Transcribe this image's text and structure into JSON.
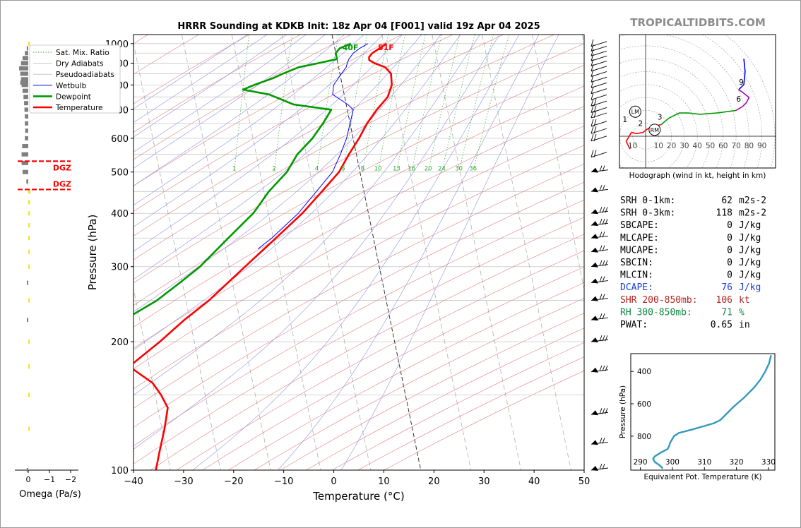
{
  "title": "HRRR Sounding at KDKB Init: 18z Apr 04 [F001] valid 19z Apr 04 2025",
  "watermark": "TROPICALTIDBITS.COM",
  "colors": {
    "temperature": "#ff0000",
    "dewpoint": "#009900",
    "wetbulb": "#0000ff",
    "dry_adiabat": "#e08080",
    "pseudoadiabat": "#9090e0",
    "mixing_ratio": "#33aa33",
    "isotherm": "#b0b0b0",
    "theta_e": "#3399bb",
    "dcape": "#1f3fd1",
    "shear": "#b22222",
    "rh": "#118844",
    "dgz": "#ff0000",
    "omega_up": "#f6e020",
    "omega_down": "#808080"
  },
  "legend": {
    "items": [
      {
        "label": "Sat. Mix. Ratio",
        "style": "mix"
      },
      {
        "label": "Dry Adiabats",
        "style": "dry"
      },
      {
        "label": "Pseudoadiabats",
        "style": "pseudo"
      },
      {
        "label": "Wetbulb",
        "style": "wet"
      },
      {
        "label": "Dewpoint",
        "style": "dew"
      },
      {
        "label": "Temperature",
        "style": "temp"
      }
    ]
  },
  "chart_data": [
    {
      "type": "line",
      "name": "skew-t",
      "xlabel": "Temperature (°C)",
      "ylabel": "Pressure (hPa)",
      "xlim": [
        -40,
        50
      ],
      "ylim": [
        1050,
        100
      ],
      "y_scale": "log",
      "xticks": [
        -40,
        -30,
        -20,
        -10,
        0,
        10,
        20,
        30,
        40,
        50
      ],
      "xtick_labels": [
        "−40",
        "−30",
        "−20",
        "−10",
        "0",
        "10",
        "20",
        "30",
        "40",
        "50"
      ],
      "yticks": [
        1000,
        900,
        800,
        700,
        600,
        500,
        400,
        300,
        200,
        100
      ],
      "mixing_ratio_labels": [
        "1",
        "2",
        "4",
        "6",
        "8",
        "10",
        "13",
        "16",
        "20",
        "24",
        "30",
        "36"
      ],
      "surface_labels": {
        "temperature": "51F",
        "dewpoint": "40F"
      },
      "series": [
        {
          "name": "Temperature",
          "points": [
            [
              1000,
              10.5
            ],
            [
              975,
              9.0
            ],
            [
              950,
              7.3
            ],
            [
              930,
              6.5
            ],
            [
              915,
              6.4
            ],
            [
              900,
              7.3
            ],
            [
              880,
              9.3
            ],
            [
              850,
              10.2
            ],
            [
              800,
              9.9
            ],
            [
              750,
              8.6
            ],
            [
              700,
              5.9
            ],
            [
              650,
              3.4
            ],
            [
              600,
              1.2
            ],
            [
              550,
              -1.5
            ],
            [
              500,
              -4.2
            ],
            [
              450,
              -8.4
            ],
            [
              400,
              -13.2
            ],
            [
              350,
              -19.5
            ],
            [
              300,
              -26.8
            ],
            [
              250,
              -35.4
            ],
            [
              225,
              -41.1
            ],
            [
              200,
              -46.9
            ],
            [
              175,
              -54.0
            ],
            [
              160,
              -50.0
            ],
            [
              150,
              -48.8
            ],
            [
              140,
              -48.0
            ],
            [
              125,
              -49.5
            ],
            [
              110,
              -51.5
            ],
            [
              100,
              -52.9
            ]
          ]
        },
        {
          "name": "Dewpoint",
          "points": [
            [
              1000,
              3.4
            ],
            [
              975,
              1.0
            ],
            [
              950,
              0.0
            ],
            [
              920,
              0.0
            ],
            [
              900,
              -3.8
            ],
            [
              880,
              -8.0
            ],
            [
              850,
              -11.4
            ],
            [
              830,
              -13.5
            ],
            [
              800,
              -17.6
            ],
            [
              780,
              -20.0
            ],
            [
              760,
              -15.0
            ],
            [
              720,
              -10.5
            ],
            [
              700,
              -3.2
            ],
            [
              650,
              -5.4
            ],
            [
              600,
              -8.1
            ],
            [
              550,
              -11.8
            ],
            [
              500,
              -14.6
            ],
            [
              450,
              -19.0
            ],
            [
              400,
              -23.0
            ],
            [
              350,
              -29.0
            ],
            [
              300,
              -35.8
            ],
            [
              275,
              -40.5
            ],
            [
              250,
              -45.8
            ],
            [
              200,
              -61.4
            ],
            [
              175,
              -68.5
            ],
            [
              150,
              -75.0
            ],
            [
              125,
              -80.7
            ],
            [
              110,
              -86.5
            ],
            [
              100,
              -88.0
            ]
          ]
        },
        {
          "name": "Wetbulb",
          "points": [
            [
              1000,
              6.8
            ],
            [
              975,
              5.0
            ],
            [
              950,
              3.5
            ],
            [
              920,
              2.4
            ],
            [
              900,
              1.9
            ],
            [
              880,
              1.5
            ],
            [
              850,
              0.3
            ],
            [
              800,
              -1.7
            ],
            [
              760,
              -2.3
            ],
            [
              720,
              0.3
            ],
            [
              700,
              1.2
            ],
            [
              650,
              0.0
            ],
            [
              600,
              -1.3
            ],
            [
              550,
              -3.2
            ],
            [
              500,
              -5.5
            ],
            [
              450,
              -9.5
            ],
            [
              400,
              -14.0
            ],
            [
              350,
              -20.3
            ],
            [
              330,
              -23.5
            ]
          ]
        }
      ],
      "wind_barbs": "right-side profile, 100–1000 hPa"
    },
    {
      "type": "bar",
      "name": "omega",
      "xlabel": "Omega (Pa/s)",
      "xticks": [
        0,
        -1,
        -2
      ],
      "xtick_labels": [
        "0",
        "−1",
        "−2"
      ],
      "dgz_label": "DGZ",
      "dgz_levels_hpa": [
        455,
        530
      ],
      "levels_hpa": [
        100,
        125,
        150,
        175,
        200,
        225,
        250,
        275,
        300,
        325,
        350,
        375,
        400,
        425,
        450,
        475,
        500,
        525,
        550,
        575,
        600,
        625,
        650,
        675,
        700,
        725,
        750,
        775,
        800,
        810,
        825,
        850,
        875,
        900,
        925,
        950,
        975,
        1000
      ],
      "values": [
        -0.08,
        0.0,
        0.04,
        0.0,
        0.03,
        -0.06,
        0.05,
        -0.05,
        0.02,
        0.03,
        0.08,
        0.08,
        0.09,
        0.09,
        0.11,
        -0.1,
        -0.3,
        -0.35,
        -0.35,
        -0.32,
        -0.18,
        -0.16,
        -0.18,
        -0.18,
        -0.2,
        -0.22,
        -0.25,
        -0.3,
        -0.35,
        -0.42,
        -0.38,
        -0.42,
        -0.48,
        -0.38,
        -0.3,
        -0.18,
        -0.08,
        0.05
      ]
    },
    {
      "type": "line",
      "name": "hodograph",
      "xlabel": "Hodograph (wind in kt, height in km)",
      "ring_labels": [
        "10",
        "10",
        "20",
        "30",
        "40",
        "50",
        "60",
        "70",
        "80",
        "90"
      ],
      "height_labels": [
        "1",
        "2",
        "3",
        "6",
        "9"
      ],
      "markers": [
        "LM",
        "RM"
      ],
      "segments": [
        {
          "name": "0-3 km",
          "color": "#ff0000",
          "points": [
            [
              -12,
              -10
            ],
            [
              -15,
              -4
            ],
            [
              -11,
              3
            ],
            [
              -7,
              2
            ],
            [
              -2,
              3
            ],
            [
              2,
              6
            ],
            [
              8,
              8
            ],
            [
              12,
              9
            ]
          ]
        },
        {
          "name": "3-6 km",
          "color": "#009900",
          "points": [
            [
              12,
              9
            ],
            [
              18,
              14
            ],
            [
              26,
              18
            ],
            [
              33,
              18
            ],
            [
              42,
              17
            ],
            [
              55,
              18
            ],
            [
              70,
              20
            ]
          ]
        },
        {
          "name": "6-9 km",
          "color": "#aa00aa",
          "points": [
            [
              70,
              20
            ],
            [
              75,
              23
            ],
            [
              78,
              26
            ],
            [
              80,
              30
            ],
            [
              75,
              34
            ],
            [
              72,
              36
            ]
          ]
        },
        {
          "name": "9+ km",
          "color": "#0000ff",
          "points": [
            [
              72,
              36
            ],
            [
              76,
              40
            ],
            [
              77,
              50
            ],
            [
              76,
              60
            ]
          ]
        }
      ],
      "storm_motion": {
        "LM": [
          -8,
          19
        ],
        "RM": [
          7,
          5
        ]
      }
    },
    {
      "type": "line",
      "name": "theta-e profile",
      "xlabel": "Equivalent Pot. Temperature (K)",
      "ylabel": "Pressure (hPa)",
      "xlim": [
        287,
        332
      ],
      "ylim": [
        1010,
        290
      ],
      "xticks": [
        290,
        300,
        310,
        320,
        330
      ],
      "yticks": [
        400,
        600,
        800
      ],
      "points": [
        [
          1000,
          297.0
        ],
        [
          980,
          296.0
        ],
        [
          960,
          294.5
        ],
        [
          940,
          294.0
        ],
        [
          925,
          294.5
        ],
        [
          900,
          296.5
        ],
        [
          880,
          298.5
        ],
        [
          860,
          299.0
        ],
        [
          840,
          299.3
        ],
        [
          800,
          300.5
        ],
        [
          780,
          302.0
        ],
        [
          760,
          306.0
        ],
        [
          740,
          309.5
        ],
        [
          720,
          313.0
        ],
        [
          700,
          315.0
        ],
        [
          680,
          316.0
        ],
        [
          620,
          319.0
        ],
        [
          560,
          322.5
        ],
        [
          500,
          325.5
        ],
        [
          450,
          327.5
        ],
        [
          400,
          329.0
        ],
        [
          350,
          330.2
        ],
        [
          300,
          330.8
        ]
      ]
    }
  ],
  "indices": [
    {
      "label": "SRH 0-1km:",
      "value": "62",
      "unit": "m2s-2",
      "color": "#000000"
    },
    {
      "label": "SRH 0-3km:",
      "value": "118",
      "unit": "m2s-2",
      "color": "#000000"
    },
    {
      "label": "SBCAPE:",
      "value": "0",
      "unit": "J/kg",
      "color": "#000000"
    },
    {
      "label": "MLCAPE:",
      "value": "0",
      "unit": "J/kg",
      "color": "#000000"
    },
    {
      "label": "MUCAPE:",
      "value": "0",
      "unit": "J/kg",
      "color": "#000000"
    },
    {
      "label": "SBCIN:",
      "value": "0",
      "unit": "J/kg",
      "color": "#000000"
    },
    {
      "label": "MLCIN:",
      "value": "0",
      "unit": "J/kg",
      "color": "#000000"
    },
    {
      "label": "DCAPE:",
      "value": "76",
      "unit": "J/kg",
      "color": "#1f3fd1"
    },
    {
      "label": "SHR 200-850mb:",
      "value": "106",
      "unit": "kt",
      "color": "#b22222"
    },
    {
      "label": "RH 300-850mb:",
      "value": "71",
      "unit": "%",
      "color": "#118844"
    },
    {
      "label": "PWAT:",
      "value": "0.65",
      "unit": "in",
      "color": "#000000"
    }
  ]
}
